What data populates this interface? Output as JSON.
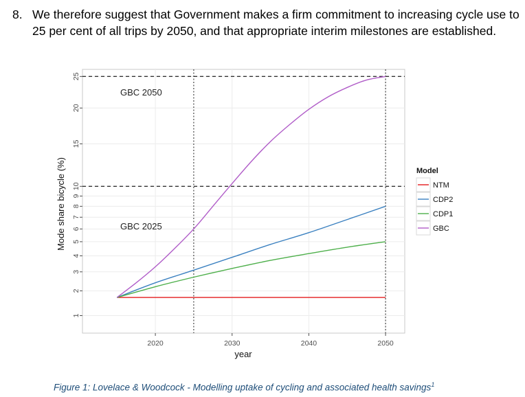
{
  "paragraph": {
    "number": "8.",
    "text": "We therefore suggest that Government makes a firm commitment to increasing cycle use to 25 per cent of all trips by 2050, and that appropriate interim milestones are established."
  },
  "caption": {
    "text": "Figure 1: Lovelace & Woodcock - Modelling uptake of cycling and associated health savings",
    "footnote": "1"
  },
  "chart_data": {
    "type": "line",
    "xlabel": "year",
    "ylabel": "Mode share bicycle (%)",
    "xlim": [
      2010.5,
      2052.5
    ],
    "ylim": [
      0.5,
      26.2
    ],
    "x_ticks": [
      2020,
      2030,
      2040,
      2050
    ],
    "y_ticks": [
      1,
      2,
      3,
      4,
      5,
      6,
      7,
      8,
      9,
      10,
      15,
      20,
      25
    ],
    "y_scale": "sqrt",
    "grid": true,
    "legend": {
      "title": "Model",
      "position": "right"
    },
    "reference_lines": {
      "horizontal": [
        {
          "y": 25,
          "label": "GBC 2050",
          "style": "dashed"
        },
        {
          "y": 10,
          "label": "GBC 2025",
          "style": "dashed"
        }
      ],
      "vertical": [
        {
          "x": 2025,
          "style": "dotted"
        },
        {
          "x": 2050,
          "style": "dotted"
        }
      ]
    },
    "series": [
      {
        "name": "NTM",
        "color": "#e41a1c",
        "x": [
          2015,
          2020,
          2025,
          2030,
          2035,
          2040,
          2045,
          2050
        ],
        "values": [
          1.7,
          1.7,
          1.7,
          1.7,
          1.7,
          1.7,
          1.7,
          1.7
        ]
      },
      {
        "name": "CDP2",
        "color": "#3a80c0",
        "x": [
          2015,
          2020,
          2025,
          2030,
          2035,
          2040,
          2045,
          2050
        ],
        "values": [
          1.7,
          2.4,
          3.1,
          3.9,
          4.8,
          5.7,
          6.8,
          8.0
        ]
      },
      {
        "name": "CDP1",
        "color": "#4daf4a",
        "x": [
          2015,
          2020,
          2025,
          2030,
          2035,
          2040,
          2045,
          2050
        ],
        "values": [
          1.7,
          2.2,
          2.7,
          3.2,
          3.7,
          4.15,
          4.6,
          5.0
        ]
      },
      {
        "name": "GBC",
        "color": "#b05cc8",
        "x": [
          2015,
          2017.5,
          2020,
          2022.5,
          2025,
          2027.5,
          2030,
          2032.5,
          2035,
          2037.5,
          2040,
          2042.5,
          2045,
          2047.5,
          2050
        ],
        "values": [
          1.7,
          2.4,
          3.3,
          4.5,
          6.0,
          8.0,
          10.3,
          12.8,
          15.3,
          17.6,
          19.8,
          21.7,
          23.2,
          24.4,
          25.0
        ]
      }
    ]
  }
}
